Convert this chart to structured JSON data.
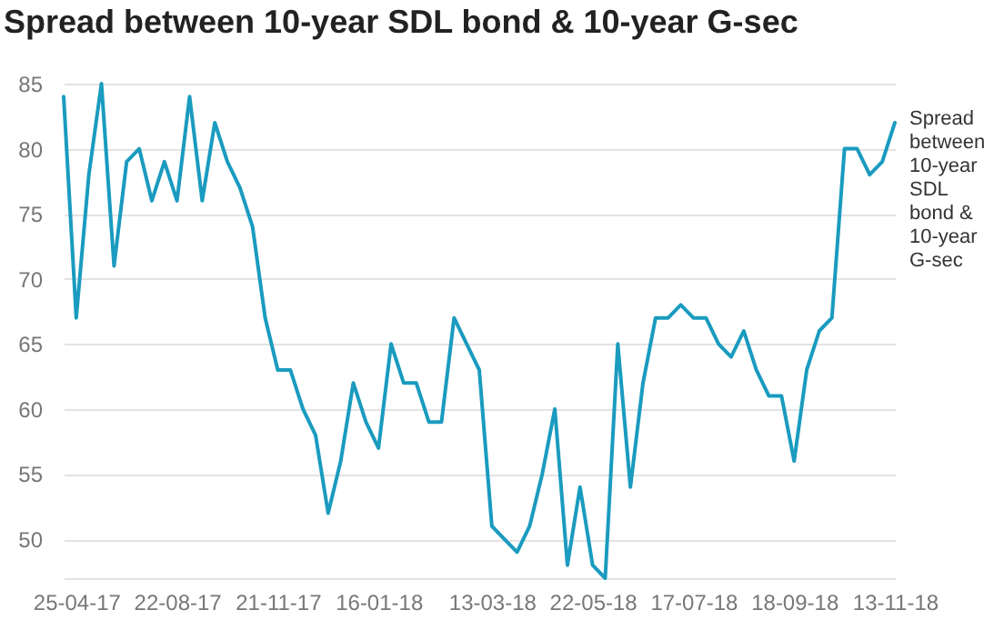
{
  "chart_data": {
    "type": "line",
    "title": "Spread between 10-year SDL bond & 10-year G-sec",
    "categories": [
      null,
      "25-04-17",
      null,
      null,
      null,
      null,
      null,
      null,
      null,
      "22-08-17",
      null,
      null,
      null,
      null,
      null,
      null,
      null,
      "21-11-17",
      null,
      null,
      null,
      null,
      null,
      null,
      null,
      "16-01-18",
      null,
      null,
      null,
      null,
      null,
      null,
      null,
      null,
      "13-03-18",
      null,
      null,
      null,
      null,
      null,
      null,
      null,
      "22-05-18",
      null,
      null,
      null,
      null,
      null,
      null,
      null,
      "17-07-18",
      null,
      null,
      null,
      null,
      null,
      null,
      null,
      "18-09-18",
      null,
      null,
      null,
      null,
      null,
      null,
      null,
      "13-11-18"
    ],
    "series": [
      {
        "name": "Spread between 10-year SDL bond & 10-year G-sec",
        "color": "#1a9bbf",
        "values": [
          84,
          67,
          78,
          85,
          71,
          79,
          80,
          76,
          79,
          76,
          84,
          76,
          82,
          79,
          77,
          74,
          67,
          63,
          63,
          60,
          58,
          52,
          56,
          62,
          59,
          57,
          65,
          62,
          62,
          59,
          59,
          67,
          65,
          63,
          51,
          50,
          49,
          51,
          55,
          60,
          48,
          54,
          48,
          47,
          65,
          54,
          62,
          67,
          67,
          68,
          67,
          67,
          65,
          64,
          66,
          63,
          61,
          61,
          56,
          63,
          66,
          67,
          80,
          80,
          78,
          79,
          82
        ]
      }
    ],
    "ylim": [
      47,
      85
    ],
    "yticks": [
      50,
      55,
      60,
      65,
      70,
      75,
      80,
      85
    ],
    "grid": "y"
  }
}
